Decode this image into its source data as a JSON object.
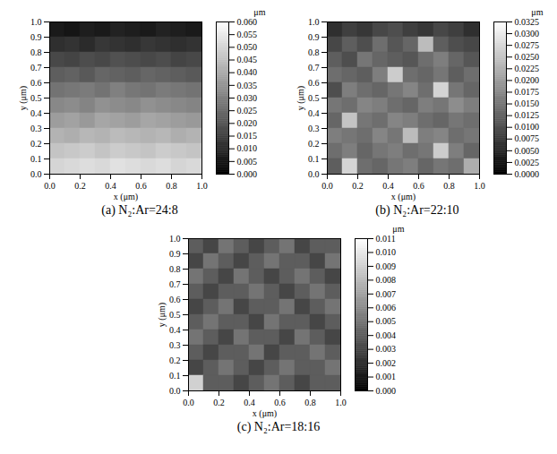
{
  "chart_data": [
    {
      "type": "heatmap",
      "title": "(a) N₂:Ar=24:8",
      "x_label": "x (μm)",
      "y_label": "y (μm)",
      "xlim": [
        0,
        1
      ],
      "ylim": [
        0,
        1
      ],
      "xticks": [
        {
          "value": 0,
          "label": "0.0"
        },
        {
          "value": 0.2,
          "label": "0.2"
        },
        {
          "value": 0.4,
          "label": "0.4"
        },
        {
          "value": 0.6,
          "label": "0.6"
        },
        {
          "value": 0.8,
          "label": "0.8"
        },
        {
          "value": 1,
          "label": "1.0"
        }
      ],
      "yticks": [
        {
          "value": 0,
          "label": "0.0"
        },
        {
          "value": 0.1,
          "label": "0.1"
        },
        {
          "value": 0.2,
          "label": "0.2"
        },
        {
          "value": 0.3,
          "label": "0.3"
        },
        {
          "value": 0.4,
          "label": "0.4"
        },
        {
          "value": 0.5,
          "label": "0.5"
        },
        {
          "value": 0.6,
          "label": "0.6"
        },
        {
          "value": 0.7,
          "label": "0.7"
        },
        {
          "value": 0.8,
          "label": "0.8"
        },
        {
          "value": 0.9,
          "label": "0.9"
        },
        {
          "value": 1,
          "label": "1.0"
        }
      ],
      "z": [
        [
          0.006,
          0.005,
          0.007,
          0.006,
          0.008,
          0.007,
          0.006,
          0.008,
          0.007,
          0.006
        ],
        [
          0.011,
          0.012,
          0.01,
          0.013,
          0.012,
          0.011,
          0.013,
          0.012,
          0.011,
          0.012
        ],
        [
          0.017,
          0.016,
          0.018,
          0.017,
          0.019,
          0.018,
          0.017,
          0.018,
          0.016,
          0.017
        ],
        [
          0.022,
          0.023,
          0.021,
          0.024,
          0.023,
          0.022,
          0.024,
          0.023,
          0.022,
          0.021
        ],
        [
          0.027,
          0.028,
          0.029,
          0.027,
          0.03,
          0.028,
          0.027,
          0.029,
          0.028,
          0.027
        ],
        [
          0.032,
          0.033,
          0.031,
          0.034,
          0.033,
          0.032,
          0.034,
          0.033,
          0.032,
          0.031
        ],
        [
          0.037,
          0.038,
          0.036,
          0.039,
          0.038,
          0.037,
          0.039,
          0.038,
          0.037,
          0.036
        ],
        [
          0.042,
          0.041,
          0.043,
          0.042,
          0.044,
          0.043,
          0.042,
          0.043,
          0.041,
          0.042
        ],
        [
          0.046,
          0.047,
          0.048,
          0.046,
          0.048,
          0.047,
          0.046,
          0.048,
          0.047,
          0.046
        ],
        [
          0.05,
          0.051,
          0.052,
          0.051,
          0.053,
          0.052,
          0.051,
          0.052,
          0.05,
          0.051
        ]
      ],
      "colorbar": {
        "label": "μm",
        "range": [
          0,
          0.06
        ],
        "colors": [
          "#000000",
          "#ffffff"
        ],
        "ticks": [
          {
            "value": 0,
            "label": "0.000"
          },
          {
            "value": 0.005,
            "label": "0.005"
          },
          {
            "value": 0.01,
            "label": "0.010"
          },
          {
            "value": 0.015,
            "label": "0.015"
          },
          {
            "value": 0.02,
            "label": "0.020"
          },
          {
            "value": 0.025,
            "label": "0.025"
          },
          {
            "value": 0.03,
            "label": "0.030"
          },
          {
            "value": 0.035,
            "label": "0.035"
          },
          {
            "value": 0.04,
            "label": "0.040"
          },
          {
            "value": 0.045,
            "label": "0.045"
          },
          {
            "value": 0.05,
            "label": "0.050"
          },
          {
            "value": 0.055,
            "label": "0.055"
          },
          {
            "value": 0.06,
            "label": "0.060"
          }
        ]
      }
    },
    {
      "type": "heatmap",
      "title": "(b) N₂:Ar=22:10",
      "x_label": "x (μm)",
      "y_label": "y (μm)",
      "xlim": [
        0,
        1
      ],
      "ylim": [
        0,
        1
      ],
      "xticks": [
        {
          "value": 0,
          "label": "0.0"
        },
        {
          "value": 0.2,
          "label": "0.2"
        },
        {
          "value": 0.4,
          "label": "0.4"
        },
        {
          "value": 0.6,
          "label": "0.6"
        },
        {
          "value": 0.8,
          "label": "0.8"
        },
        {
          "value": 1,
          "label": "1.0"
        }
      ],
      "yticks": [
        {
          "value": 0,
          "label": "0.0"
        },
        {
          "value": 0.1,
          "label": "0.1"
        },
        {
          "value": 0.2,
          "label": "0.2"
        },
        {
          "value": 0.3,
          "label": "0.3"
        },
        {
          "value": 0.4,
          "label": "0.4"
        },
        {
          "value": 0.5,
          "label": "0.5"
        },
        {
          "value": 0.6,
          "label": "0.6"
        },
        {
          "value": 0.7,
          "label": "0.7"
        },
        {
          "value": 0.8,
          "label": "0.8"
        },
        {
          "value": 0.9,
          "label": "0.9"
        },
        {
          "value": 1,
          "label": "1.0"
        }
      ],
      "z": [
        [
          0.006,
          0.008,
          0.007,
          0.009,
          0.01,
          0.008,
          0.007,
          0.009,
          0.008,
          0.006
        ],
        [
          0.009,
          0.012,
          0.01,
          0.014,
          0.011,
          0.013,
          0.024,
          0.012,
          0.01,
          0.009
        ],
        [
          0.012,
          0.01,
          0.015,
          0.013,
          0.012,
          0.011,
          0.014,
          0.016,
          0.013,
          0.011
        ],
        [
          0.014,
          0.013,
          0.012,
          0.016,
          0.026,
          0.014,
          0.013,
          0.015,
          0.012,
          0.014
        ],
        [
          0.01,
          0.016,
          0.014,
          0.013,
          0.015,
          0.017,
          0.014,
          0.027,
          0.015,
          0.013
        ],
        [
          0.015,
          0.014,
          0.017,
          0.016,
          0.014,
          0.013,
          0.016,
          0.015,
          0.018,
          0.016
        ],
        [
          0.013,
          0.025,
          0.015,
          0.014,
          0.017,
          0.016,
          0.014,
          0.013,
          0.015,
          0.014
        ],
        [
          0.016,
          0.015,
          0.014,
          0.017,
          0.015,
          0.024,
          0.016,
          0.017,
          0.014,
          0.015
        ],
        [
          0.014,
          0.016,
          0.013,
          0.015,
          0.016,
          0.014,
          0.015,
          0.026,
          0.016,
          0.013
        ],
        [
          0.012,
          0.027,
          0.014,
          0.013,
          0.015,
          0.016,
          0.013,
          0.015,
          0.014,
          0.022
        ]
      ],
      "colorbar": {
        "label": "μm",
        "range": [
          0,
          0.0325
        ],
        "colors": [
          "#000000",
          "#ffffff"
        ],
        "ticks": [
          {
            "value": 0,
            "label": "0.0000"
          },
          {
            "value": 0.0025,
            "label": "0.0025"
          },
          {
            "value": 0.005,
            "label": "0.0050"
          },
          {
            "value": 0.0075,
            "label": "0.0075"
          },
          {
            "value": 0.01,
            "label": "0.0100"
          },
          {
            "value": 0.0125,
            "label": "0.0125"
          },
          {
            "value": 0.015,
            "label": "0.0150"
          },
          {
            "value": 0.0175,
            "label": "0.0175"
          },
          {
            "value": 0.02,
            "label": "0.0200"
          },
          {
            "value": 0.0225,
            "label": "0.0225"
          },
          {
            "value": 0.025,
            "label": "0.0250"
          },
          {
            "value": 0.0275,
            "label": "0.0275"
          },
          {
            "value": 0.03,
            "label": "0.0300"
          },
          {
            "value": 0.0325,
            "label": "0.0325"
          }
        ]
      }
    },
    {
      "type": "heatmap",
      "title": "(c) N₂:Ar=18:16",
      "x_label": "x (μm)",
      "y_label": "y (μm)",
      "xlim": [
        0,
        1
      ],
      "ylim": [
        0,
        1
      ],
      "xticks": [
        {
          "value": 0,
          "label": "0.0"
        },
        {
          "value": 0.2,
          "label": "0.2"
        },
        {
          "value": 0.4,
          "label": "0.4"
        },
        {
          "value": 0.6,
          "label": "0.6"
        },
        {
          "value": 0.8,
          "label": "0.8"
        },
        {
          "value": 1,
          "label": "1.0"
        }
      ],
      "yticks": [
        {
          "value": 0,
          "label": "0.0"
        },
        {
          "value": 0.1,
          "label": "0.1"
        },
        {
          "value": 0.2,
          "label": "0.2"
        },
        {
          "value": 0.3,
          "label": "0.3"
        },
        {
          "value": 0.4,
          "label": "0.4"
        },
        {
          "value": 0.5,
          "label": "0.5"
        },
        {
          "value": 0.6,
          "label": "0.6"
        },
        {
          "value": 0.7,
          "label": "0.7"
        },
        {
          "value": 0.8,
          "label": "0.8"
        },
        {
          "value": 0.9,
          "label": "0.9"
        },
        {
          "value": 1,
          "label": "1.0"
        }
      ],
      "z": [
        [
          0.004,
          0.003,
          0.005,
          0.004,
          0.003,
          0.004,
          0.005,
          0.003,
          0.004,
          0.004
        ],
        [
          0.003,
          0.005,
          0.004,
          0.003,
          0.004,
          0.005,
          0.004,
          0.004,
          0.003,
          0.005
        ],
        [
          0.005,
          0.004,
          0.003,
          0.005,
          0.004,
          0.003,
          0.004,
          0.005,
          0.004,
          0.003
        ],
        [
          0.004,
          0.003,
          0.004,
          0.004,
          0.005,
          0.004,
          0.003,
          0.004,
          0.005,
          0.004
        ],
        [
          0.003,
          0.004,
          0.005,
          0.003,
          0.004,
          0.004,
          0.005,
          0.003,
          0.004,
          0.005
        ],
        [
          0.004,
          0.005,
          0.004,
          0.004,
          0.003,
          0.005,
          0.004,
          0.004,
          0.003,
          0.004
        ],
        [
          0.005,
          0.004,
          0.003,
          0.005,
          0.004,
          0.004,
          0.003,
          0.005,
          0.004,
          0.003
        ],
        [
          0.004,
          0.003,
          0.004,
          0.004,
          0.005,
          0.003,
          0.004,
          0.004,
          0.005,
          0.004
        ],
        [
          0.003,
          0.004,
          0.005,
          0.004,
          0.003,
          0.004,
          0.005,
          0.004,
          0.004,
          0.005
        ],
        [
          0.009,
          0.004,
          0.004,
          0.003,
          0.004,
          0.005,
          0.004,
          0.003,
          0.004,
          0.004
        ]
      ],
      "colorbar": {
        "label": "μm",
        "range": [
          0,
          0.011
        ],
        "colors": [
          "#000000",
          "#ffffff"
        ],
        "ticks": [
          {
            "value": 0,
            "label": "0.000"
          },
          {
            "value": 0.001,
            "label": "0.001"
          },
          {
            "value": 0.002,
            "label": "0.002"
          },
          {
            "value": 0.003,
            "label": "0.003"
          },
          {
            "value": 0.004,
            "label": "0.004"
          },
          {
            "value": 0.005,
            "label": "0.005"
          },
          {
            "value": 0.006,
            "label": "0.006"
          },
          {
            "value": 0.007,
            "label": "0.007"
          },
          {
            "value": 0.008,
            "label": "0.008"
          },
          {
            "value": 0.009,
            "label": "0.009"
          },
          {
            "value": 0.01,
            "label": "0.010"
          },
          {
            "value": 0.011,
            "label": "0.011"
          }
        ]
      }
    }
  ]
}
